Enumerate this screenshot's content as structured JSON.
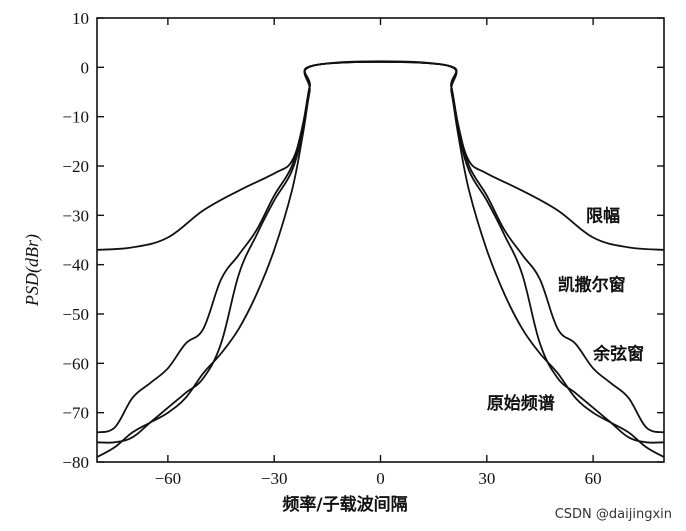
{
  "chart_data": {
    "type": "line",
    "xlabel": "频率/子载波间隔",
    "ylabel": "PSD(dBr)",
    "xlim": [
      -80,
      80
    ],
    "ylim": [
      -80,
      10
    ],
    "xticks": [
      -60,
      -30,
      0,
      30,
      60
    ],
    "yticks": [
      10,
      0,
      -10,
      -20,
      -30,
      -40,
      -50,
      -60,
      -70,
      -80
    ],
    "grid": false,
    "series": [
      {
        "name": "限幅",
        "x": [
          -80,
          -70,
          -60,
          -50,
          -40,
          -30,
          -25,
          -22,
          -20,
          -18,
          18,
          20,
          22,
          25,
          30,
          40,
          50,
          60,
          70,
          80
        ],
        "y": [
          -37,
          -36.5,
          -34.5,
          -29,
          -25,
          -21.5,
          -19,
          -12,
          -4,
          0.5,
          0.5,
          -4,
          -12,
          -19,
          -21.5,
          -25,
          -29,
          -34.5,
          -36.5,
          -37
        ]
      },
      {
        "name": "凯撒尔窗",
        "x": [
          -80,
          -75,
          -70,
          -65,
          -60,
          -55,
          -50,
          -45,
          -40,
          -35,
          -30,
          -25,
          -22,
          -20,
          -18,
          18,
          20,
          22,
          25,
          30,
          35,
          40,
          45,
          50,
          55,
          60,
          65,
          70,
          75,
          80
        ],
        "y": [
          -74,
          -73,
          -67,
          -64,
          -61,
          -56,
          -53,
          -43,
          -38,
          -33,
          -26,
          -20,
          -12,
          -4,
          0.5,
          0.5,
          -4,
          -12,
          -20,
          -26,
          -33,
          -38,
          -43,
          -53,
          -56,
          -61,
          -64,
          -67,
          -73,
          -74
        ],
        "label_ref": true
      },
      {
        "name": "余弦窗",
        "x": [
          -80,
          -75,
          -70,
          -65,
          -60,
          -55,
          -50,
          -45,
          -40,
          -35,
          -30,
          -25,
          -22,
          -20,
          -18,
          18,
          20,
          22,
          25,
          30,
          35,
          40,
          45,
          50,
          55,
          60,
          65,
          70,
          75,
          80
        ],
        "y": [
          -76,
          -76,
          -75,
          -72,
          -69,
          -66,
          -63,
          -56,
          -42,
          -34,
          -27,
          -21,
          -13,
          -4,
          0.5,
          0.5,
          -4,
          -13,
          -21,
          -27,
          -34,
          -42,
          -56,
          -63,
          -66,
          -69,
          -72,
          -75,
          -76,
          -76
        ]
      },
      {
        "name": "原始频谱",
        "x": [
          -80,
          -75,
          -70,
          -65,
          -60,
          -55,
          -50,
          -45,
          -40,
          -35,
          -30,
          -25,
          -22,
          -20,
          -18,
          18,
          20,
          22,
          25,
          30,
          35,
          40,
          45,
          50,
          55,
          60,
          65,
          70,
          75,
          80
        ],
        "y": [
          -79,
          -77,
          -74,
          -72,
          -70,
          -67,
          -62,
          -58,
          -53,
          -46,
          -37,
          -25,
          -14,
          -5,
          0.5,
          0.5,
          -5,
          -14,
          -25,
          -37,
          -46,
          -53,
          -58,
          -62,
          -67,
          -70,
          -72,
          -74,
          -77,
          -79
        ]
      }
    ]
  },
  "watermark": "CSDN @daijingxin"
}
